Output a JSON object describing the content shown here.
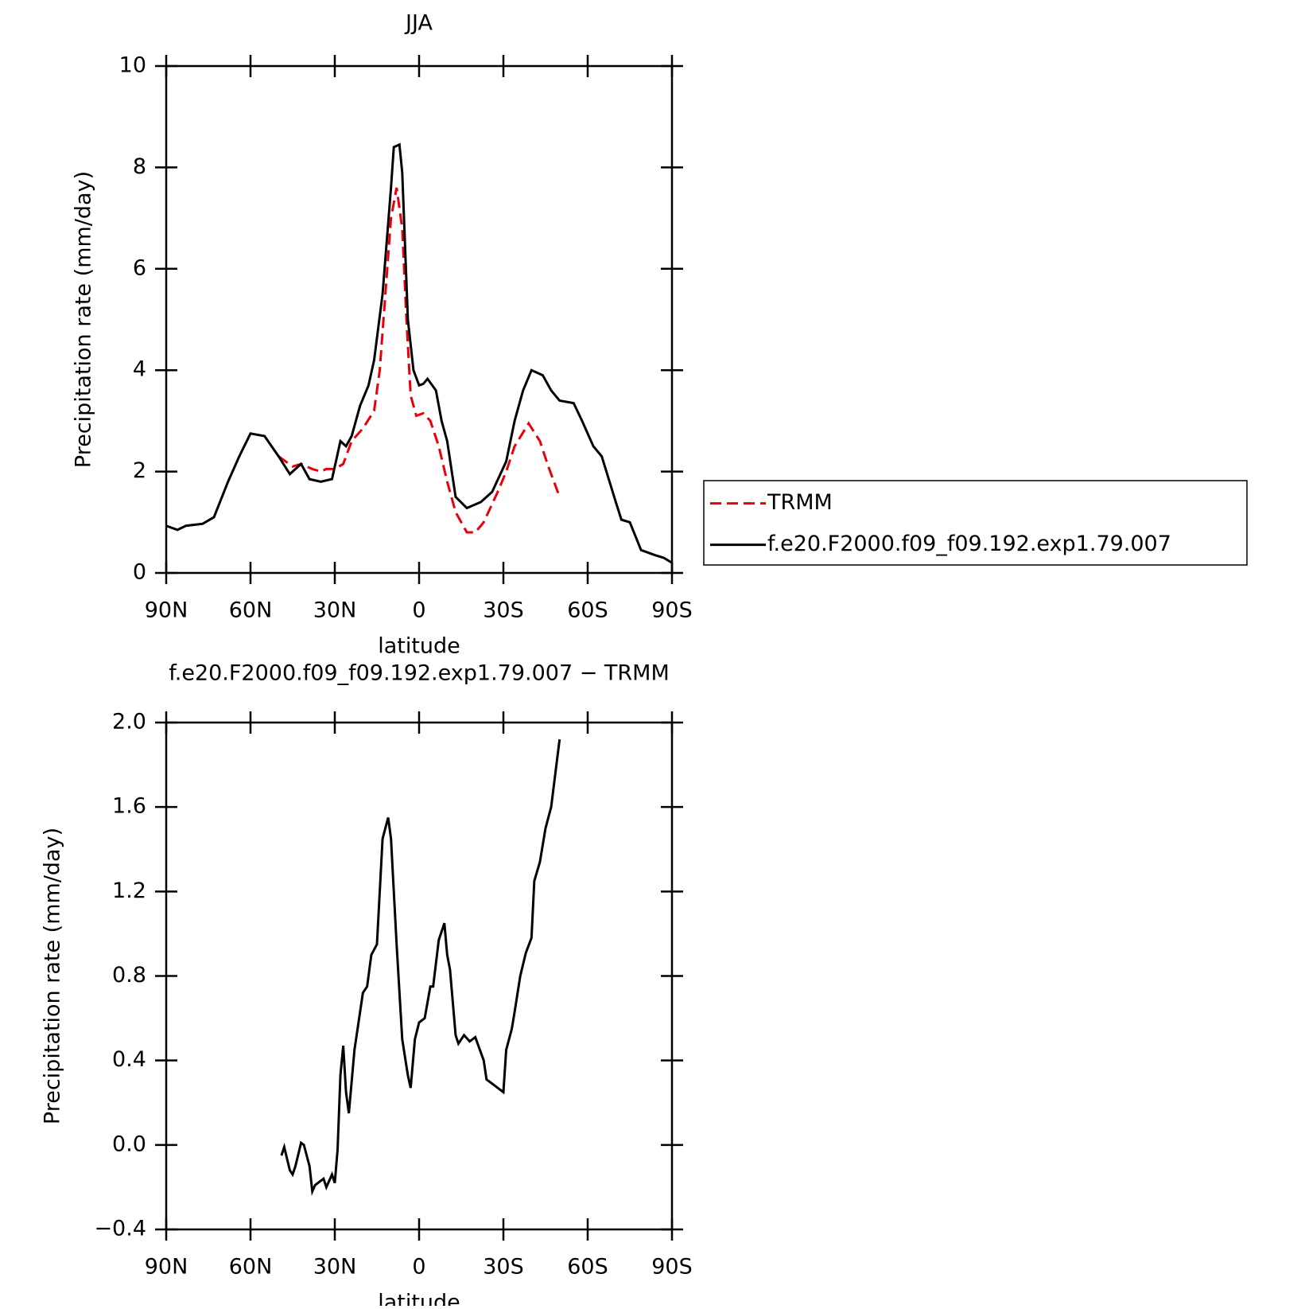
{
  "chart_data": [
    {
      "type": "line",
      "title": "JJA",
      "xlabel": "latitude",
      "ylabel": "Precipitation rate (mm/day)",
      "xlim": [
        90,
        -90
      ],
      "xticks": [
        {
          "value": 90,
          "label": "90N"
        },
        {
          "value": 60,
          "label": "60N"
        },
        {
          "value": 30,
          "label": "30N"
        },
        0,
        {
          "value": -30,
          "label": "30S"
        },
        {
          "value": -60,
          "label": "60S"
        },
        {
          "value": -90,
          "label": "90S"
        }
      ],
      "ylim": [
        0,
        10
      ],
      "yticks": [
        0,
        2,
        4,
        6,
        8,
        10
      ],
      "legend": "right",
      "series": [
        {
          "name": "TRMM",
          "color": "#e8000b",
          "linestyle": "dashed",
          "x": [
            50,
            45,
            42,
            38,
            35,
            33,
            30,
            27,
            24,
            20,
            16,
            14,
            12,
            10,
            8,
            6,
            4.5,
            3,
            1,
            -1.5,
            -4,
            -7,
            -10,
            -13,
            -17,
            -20,
            -23,
            -28,
            -31,
            -34,
            -39,
            -43,
            -46,
            -50
          ],
          "values": [
            2.3,
            2.1,
            2.15,
            2.05,
            2.0,
            2.05,
            2.05,
            2.15,
            2.6,
            2.85,
            3.2,
            4.0,
            5.5,
            7.0,
            7.6,
            6.8,
            5.0,
            3.5,
            3.1,
            3.15,
            3.0,
            2.5,
            1.8,
            1.2,
            0.8,
            0.8,
            1.0,
            1.6,
            2.0,
            2.5,
            2.95,
            2.6,
            2.1,
            1.5
          ]
        },
        {
          "name": "f.e20.F2000.f09_f09.192.exp1.79.007",
          "color": "#000000",
          "linestyle": "solid",
          "x": [
            90,
            86,
            83,
            77,
            73,
            68,
            64,
            60,
            55,
            50,
            46,
            42,
            39,
            35,
            31,
            28,
            26,
            24,
            21,
            18,
            16,
            13,
            10,
            9,
            7,
            6,
            4,
            2,
            0,
            -1.5,
            -3,
            -6,
            -8,
            -10,
            -13,
            -17,
            -22,
            -26,
            -31,
            -34,
            -37,
            -40,
            -44,
            -47,
            -50,
            -55,
            -58,
            -62,
            -65,
            -70,
            -72,
            -75,
            -79,
            -84,
            -87,
            -90
          ],
          "values": [
            0.93,
            0.85,
            0.93,
            0.97,
            1.1,
            1.8,
            2.3,
            2.75,
            2.7,
            2.3,
            1.95,
            2.15,
            1.85,
            1.8,
            1.85,
            2.6,
            2.5,
            2.7,
            3.3,
            3.7,
            4.2,
            5.5,
            7.6,
            8.4,
            8.45,
            7.9,
            5.0,
            4.0,
            3.7,
            3.73,
            3.83,
            3.6,
            3.0,
            2.6,
            1.5,
            1.28,
            1.4,
            1.6,
            2.2,
            3.0,
            3.6,
            4.0,
            3.9,
            3.6,
            3.4,
            3.35,
            3.0,
            2.5,
            2.3,
            1.4,
            1.05,
            1.0,
            0.45,
            0.35,
            0.3,
            0.2
          ]
        }
      ]
    },
    {
      "type": "line",
      "title": "f.e20.F2000.f09_f09.192.exp1.79.007 − TRMM",
      "xlabel": "latitude",
      "ylabel": "Precipitation rate (mm/day)",
      "xlim": [
        90,
        -90
      ],
      "xticks": [
        {
          "value": 90,
          "label": "90N"
        },
        {
          "value": 60,
          "label": "60N"
        },
        {
          "value": 30,
          "label": "30N"
        },
        0,
        {
          "value": -30,
          "label": "30S"
        },
        {
          "value": -60,
          "label": "60S"
        },
        {
          "value": -90,
          "label": "90S"
        }
      ],
      "ylim": [
        -0.4,
        2.0
      ],
      "yticks": [
        {
          "value": -0.4,
          "label": "−0.4"
        },
        {
          "value": 0,
          "label": "0.0"
        },
        0.4,
        0.8,
        1.2,
        1.6,
        {
          "value": 2,
          "label": "2.0"
        }
      ],
      "series": [
        {
          "color": "#000000",
          "linestyle": "solid",
          "x": [
            49,
            48,
            46,
            45,
            44,
            42,
            41,
            39,
            38,
            37,
            34,
            33,
            31,
            30,
            29,
            28,
            27,
            26,
            25,
            23,
            20,
            18.5,
            17,
            15,
            13,
            11,
            10,
            8,
            6,
            4,
            3,
            1.5,
            0,
            -2,
            -4,
            -5,
            -7,
            -9,
            -10,
            -11,
            -13,
            -14,
            -16,
            -18,
            -20,
            -23,
            -24,
            -26,
            -28,
            -30,
            -31,
            -33,
            -34,
            -36,
            -38,
            -40,
            -41,
            -43,
            -45,
            -47,
            -50
          ],
          "values": [
            -0.05,
            -0.01,
            -0.12,
            -0.14,
            -0.1,
            0.01,
            0.0,
            -0.1,
            -0.22,
            -0.19,
            -0.16,
            -0.2,
            -0.14,
            -0.18,
            -0.02,
            0.33,
            0.47,
            0.25,
            0.15,
            0.45,
            0.72,
            0.75,
            0.9,
            0.95,
            1.45,
            1.55,
            1.45,
            0.95,
            0.5,
            0.33,
            0.27,
            0.5,
            0.58,
            0.6,
            0.75,
            0.75,
            0.97,
            1.05,
            0.9,
            0.83,
            0.52,
            0.48,
            0.52,
            0.49,
            0.51,
            0.4,
            0.31,
            0.29,
            0.27,
            0.25,
            0.45,
            0.55,
            0.63,
            0.8,
            0.91,
            0.98,
            1.25,
            1.34,
            1.5,
            1.6,
            1.92
          ]
        }
      ]
    }
  ]
}
